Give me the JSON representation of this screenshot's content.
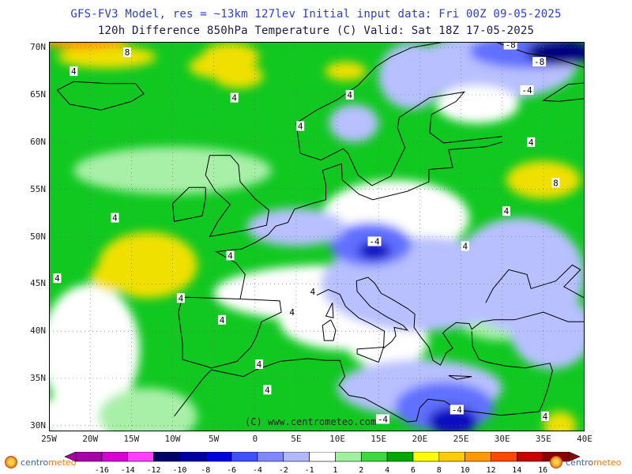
{
  "header": {
    "line1": "GFS-FV3 Model, res = ~13km 127lev   Initial input data: Fri 00Z 09-05-2025",
    "line2": "120h Difference 850hPa Temperature (C)  Valid: Sat 18Z 17-05-2025"
  },
  "axes": {
    "lat_labels": [
      "70N",
      "65N",
      "60N",
      "55N",
      "50N",
      "45N",
      "40N",
      "35N",
      "30N"
    ],
    "lon_labels": [
      "25W",
      "20W",
      "15W",
      "10W",
      "5W",
      "0",
      "5E",
      "10E",
      "15E",
      "20E",
      "25E",
      "30E",
      "35E",
      "40E"
    ]
  },
  "contour_labels": [
    {
      "text": "8",
      "lon": -15.5,
      "lat": 69.5
    },
    {
      "text": "-8",
      "lon": 31,
      "lat": 70.3
    },
    {
      "text": "-8",
      "lon": 34.5,
      "lat": 68.5
    },
    {
      "text": "4",
      "lon": -22,
      "lat": 67.5
    },
    {
      "text": "4",
      "lon": -2.5,
      "lat": 64.7
    },
    {
      "text": "4",
      "lon": 11.5,
      "lat": 65.0
    },
    {
      "text": "4",
      "lon": 5.5,
      "lat": 61.7
    },
    {
      "text": "-4",
      "lon": 33,
      "lat": 65.5
    },
    {
      "text": "4",
      "lon": 33.5,
      "lat": 60.0
    },
    {
      "text": "8",
      "lon": 36.5,
      "lat": 55.7
    },
    {
      "text": "4",
      "lon": -17,
      "lat": 52.0
    },
    {
      "text": "4",
      "lon": 30.5,
      "lat": 52.7
    },
    {
      "text": "-4",
      "lon": 14.5,
      "lat": 49.5
    },
    {
      "text": "4",
      "lon": 25.5,
      "lat": 49.0
    },
    {
      "text": "4",
      "lon": -3,
      "lat": 48.0
    },
    {
      "text": "4",
      "lon": -24,
      "lat": 45.6
    },
    {
      "text": "4",
      "lon": -9,
      "lat": 43.5
    },
    {
      "text": "4",
      "lon": 7,
      "lat": 44.2
    },
    {
      "text": "4",
      "lon": 4.5,
      "lat": 42.0
    },
    {
      "text": "4",
      "lon": -4,
      "lat": 41.2
    },
    {
      "text": "4",
      "lon": 0.5,
      "lat": 36.5
    },
    {
      "text": "4",
      "lon": 1.5,
      "lat": 33.8
    },
    {
      "text": "-4",
      "lon": 24.5,
      "lat": 31.7
    },
    {
      "text": "-4",
      "lon": 15.5,
      "lat": 30.7
    },
    {
      "text": "4",
      "lon": 35.2,
      "lat": 31.0
    }
  ],
  "watermark": "(C) www.centrometeo.com",
  "legend": {
    "labels": [
      "-16",
      "-14",
      "-12",
      "-10",
      "-8",
      "-6",
      "-4",
      "-2",
      "-1",
      "1",
      "2",
      "4",
      "6",
      "8",
      "10",
      "12",
      "14",
      "16"
    ],
    "colors": [
      "#a800a8",
      "#d400d4",
      "#ff40ff",
      "#000066",
      "#0000a0",
      "#0000e0",
      "#4050ff",
      "#8088ff",
      "#b0b8ff",
      "#ffffff",
      "#a0f0a0",
      "#40d840",
      "#00a800",
      "#ffff00",
      "#ffcc00",
      "#ff9900",
      "#ff4800",
      "#c80000",
      "#8c0000"
    ]
  },
  "logos": {
    "brand_left": "centro",
    "brand_right": "meteo"
  },
  "field_colors": {
    "strong_warm": "#f0e000",
    "warm": "#10c820",
    "mild_warm": "#a8f0a8",
    "neutral": "#ffffff",
    "mild_cold": "#b8c0ff",
    "cold": "#6070ff",
    "strong_cold": "#1010c0",
    "very_cold": "#000080"
  }
}
